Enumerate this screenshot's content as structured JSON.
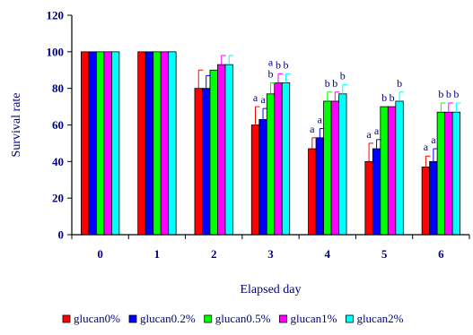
{
  "chart_data": {
    "type": "bar",
    "xlabel": "Elapsed day",
    "ylabel": "Survival rate",
    "ylim": [
      0,
      120
    ],
    "yticks": [
      0,
      20,
      40,
      60,
      80,
      100,
      120
    ],
    "categories": [
      "0",
      "1",
      "2",
      "3",
      "4",
      "5",
      "6"
    ],
    "legend_position": "bottom",
    "grid": false,
    "series": [
      {
        "name": "glucan0%",
        "color": "#ff0000",
        "values": [
          100,
          100,
          80,
          60,
          47,
          40,
          37
        ],
        "errors": [
          0,
          0,
          10,
          10,
          6,
          10,
          6
        ]
      },
      {
        "name": "glucan0.2%",
        "color": "#0000ff",
        "values": [
          100,
          100,
          80,
          63,
          53,
          47,
          40
        ],
        "errors": [
          0,
          0,
          7,
          6,
          5,
          5,
          7
        ]
      },
      {
        "name": "glucan0.5%",
        "color": "#00ff00",
        "values": [
          100,
          100,
          90,
          77,
          73,
          70,
          67
        ],
        "errors": [
          0,
          0,
          0,
          6,
          5,
          0,
          5
        ]
      },
      {
        "name": "glucan1%",
        "color": "#ff00ff",
        "values": [
          100,
          100,
          93,
          83,
          73,
          70,
          67
        ],
        "errors": [
          0,
          0,
          5,
          5,
          5,
          0,
          5
        ]
      },
      {
        "name": "glucan2%",
        "color": "#00ffff",
        "values": [
          100,
          100,
          93,
          83,
          77,
          73,
          67
        ],
        "errors": [
          0,
          0,
          5,
          5,
          5,
          5,
          5
        ]
      }
    ],
    "annotations": [
      {
        "category": "3",
        "series": "glucan0%",
        "row": 0,
        "text": "a"
      },
      {
        "category": "3",
        "series": "glucan0.2%",
        "row": 0,
        "text": "a"
      },
      {
        "category": "3",
        "series": "glucan0.5%",
        "row": 0,
        "text": "b"
      },
      {
        "category": "3",
        "series": "glucan1%",
        "row": 0,
        "text": "b"
      },
      {
        "category": "3",
        "series": "glucan2%",
        "row": 0,
        "text": "b"
      },
      {
        "category": "3",
        "series": "glucan0.5%",
        "row": 1,
        "text": "a"
      },
      {
        "category": "4",
        "series": "glucan0%",
        "row": 0,
        "text": "a"
      },
      {
        "category": "4",
        "series": "glucan0.2%",
        "row": 0,
        "text": "a"
      },
      {
        "category": "4",
        "series": "glucan0.5%",
        "row": 0,
        "text": "b"
      },
      {
        "category": "4",
        "series": "glucan1%",
        "row": 0,
        "text": "b"
      },
      {
        "category": "4",
        "series": "glucan2%",
        "row": 0,
        "text": "b"
      },
      {
        "category": "5",
        "series": "glucan0%",
        "row": 0,
        "text": "a"
      },
      {
        "category": "5",
        "series": "glucan0.2%",
        "row": 0,
        "text": "a"
      },
      {
        "category": "5",
        "series": "glucan0.5%",
        "row": 0,
        "text": "b"
      },
      {
        "category": "5",
        "series": "glucan1%",
        "row": 0,
        "text": "b"
      },
      {
        "category": "5",
        "series": "glucan2%",
        "row": 0,
        "text": "b"
      },
      {
        "category": "6",
        "series": "glucan0%",
        "row": 0,
        "text": "a"
      },
      {
        "category": "6",
        "series": "glucan0.2%",
        "row": 0,
        "text": "a"
      },
      {
        "category": "6",
        "series": "glucan0.5%",
        "row": 0,
        "text": "b"
      },
      {
        "category": "6",
        "series": "glucan1%",
        "row": 0,
        "text": "b"
      },
      {
        "category": "6",
        "series": "glucan2%",
        "row": 0,
        "text": "b"
      }
    ]
  }
}
